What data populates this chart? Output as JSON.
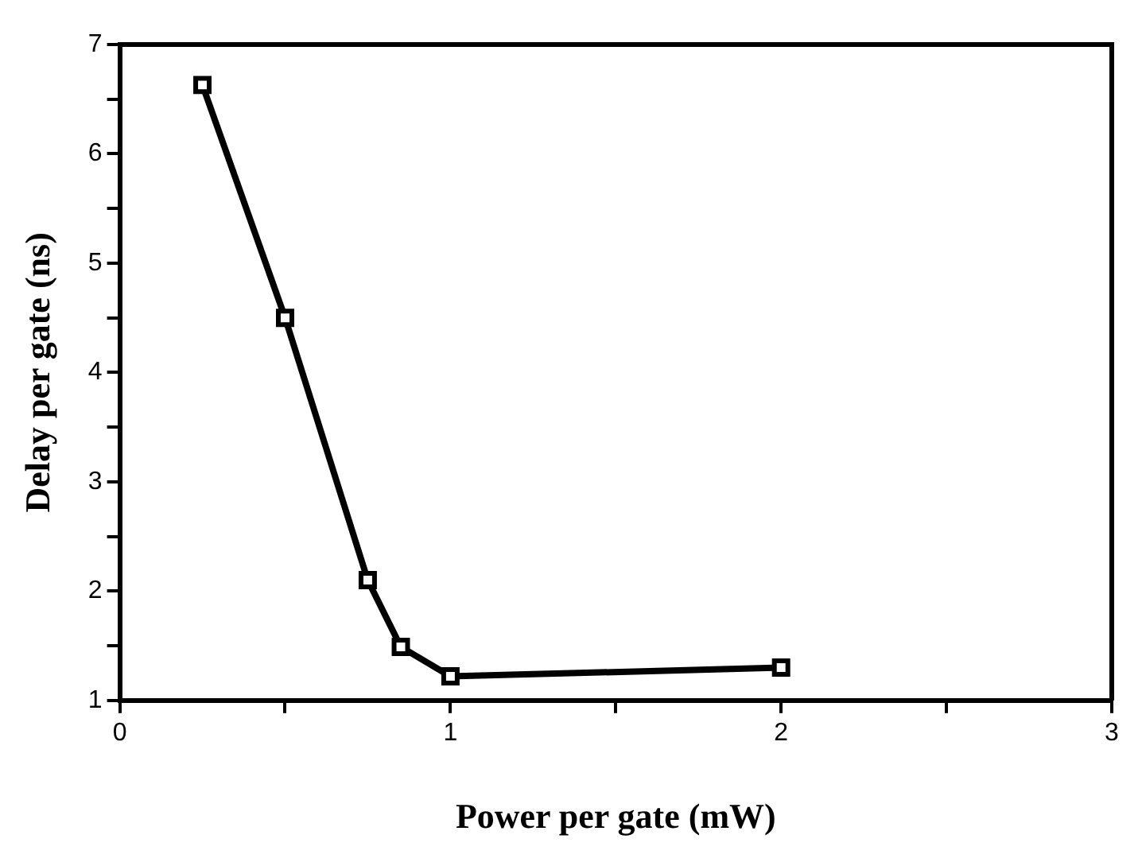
{
  "chart_data": {
    "type": "line",
    "xlabel": "Power per gate (mW)",
    "ylabel": "Delay per gate (ns)",
    "x": [
      0.25,
      0.5,
      0.75,
      0.85,
      1.0,
      2.0
    ],
    "series": [
      {
        "color": "#000000",
        "values": [
          6.63,
          4.5,
          2.1,
          1.49,
          1.22,
          1.3
        ]
      }
    ],
    "xlim": [
      0,
      3
    ],
    "xticks": [
      0,
      {
        "value": 0.5,
        "label": null
      },
      1,
      {
        "value": 1.5,
        "label": null
      },
      2,
      {
        "value": 2.5,
        "label": null
      },
      3
    ],
    "ylim": [
      1,
      7
    ],
    "yticks": [
      1,
      {
        "value": 1.5,
        "label": null
      },
      2,
      {
        "value": 2.5,
        "label": null
      },
      3,
      {
        "value": 3.5,
        "label": null
      },
      4,
      {
        "value": 4.5,
        "label": null
      },
      5,
      {
        "value": 5.5,
        "label": null
      },
      6,
      {
        "value": 6.5,
        "label": null
      },
      7
    ],
    "grid": false,
    "legend": false,
    "marker": "square",
    "line_style": "solid"
  }
}
